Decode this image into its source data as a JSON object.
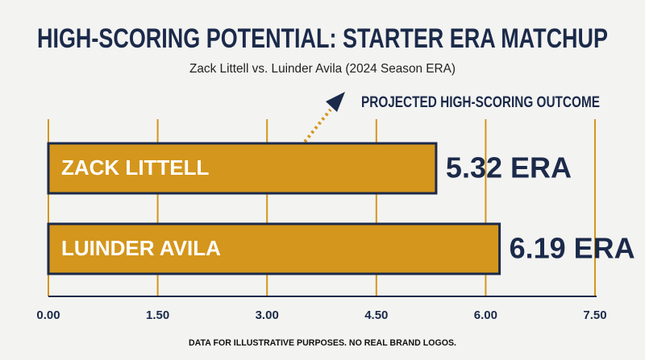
{
  "chart_data": {
    "type": "hbar",
    "title": "HIGH-SCORING POTENTIAL: STARTER ERA MATCHUP",
    "subtitle": "Zack Littell vs. Luinder Avila (2024 Season ERA)",
    "annotation": "PROJECTED HIGH-SCORING OUTCOME",
    "footnote": "DATA FOR ILLUSTRATIVE PURPOSES. NO REAL BRAND LOGOS.",
    "categories": [
      "ZACK LITTELL",
      "LUINDER AVILA"
    ],
    "values": [
      5.32,
      6.19
    ],
    "value_labels": [
      "5.32 ERA",
      "6.19 ERA"
    ],
    "color": "#d4961c",
    "xlim": [
      0,
      7.5
    ],
    "xticks": [
      {
        "value": 0,
        "label": "0.00"
      },
      {
        "value": 1.5,
        "label": "1.50"
      },
      {
        "value": 3,
        "label": "3.00"
      },
      {
        "value": 4.5,
        "label": "4.50"
      },
      {
        "value": 6,
        "label": "6.00"
      },
      {
        "value": 7.5,
        "label": "7.50"
      }
    ],
    "grid": true
  }
}
